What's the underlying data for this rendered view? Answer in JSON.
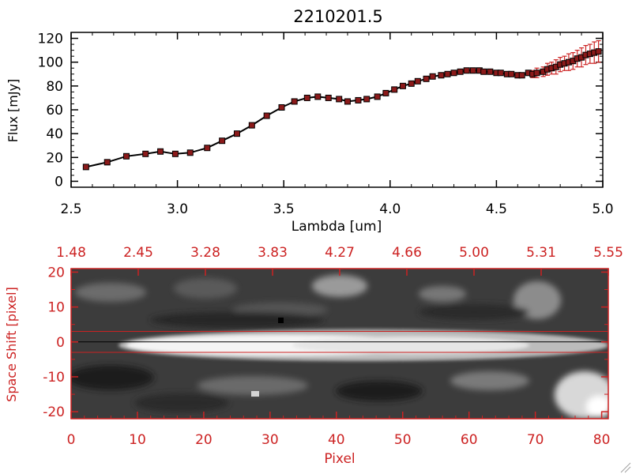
{
  "colors": {
    "accent": "#cc2222",
    "line": "#000000",
    "marker": "#8b1a1a",
    "background": "#ffffff"
  },
  "chart_data": [
    {
      "type": "line",
      "title": "2210201.5",
      "xlabel": "Lambda [um]",
      "ylabel": "Flux [mJy]",
      "xlim": [
        2.5,
        5.0
      ],
      "ylim": [
        -5,
        125
      ],
      "xticks": [
        "2.5",
        "3.0",
        "3.5",
        "4.0",
        "4.5",
        "5.0"
      ],
      "yticks": [
        "0",
        "20",
        "40",
        "60",
        "80",
        "100",
        "120"
      ],
      "series": [
        {
          "name": "spectrum",
          "x": [
            2.57,
            2.67,
            2.76,
            2.85,
            2.92,
            2.99,
            3.06,
            3.14,
            3.21,
            3.28,
            3.35,
            3.42,
            3.49,
            3.55,
            3.61,
            3.66,
            3.71,
            3.76,
            3.8,
            3.85,
            3.89,
            3.94,
            3.98,
            4.02,
            4.06,
            4.1,
            4.13,
            4.17,
            4.2,
            4.24,
            4.27,
            4.3,
            4.33,
            4.36,
            4.39,
            4.42,
            4.44,
            4.47,
            4.5,
            4.52,
            4.55,
            4.57,
            4.6,
            4.62,
            4.65,
            4.67,
            4.69,
            4.72,
            4.74,
            4.76,
            4.78,
            4.8,
            4.82,
            4.84,
            4.86,
            4.88,
            4.9,
            4.92,
            4.94,
            4.96,
            4.98
          ],
          "y": [
            12,
            16,
            21,
            23,
            25,
            23,
            24,
            28,
            34,
            40,
            47,
            55,
            62,
            67,
            70,
            71,
            70,
            69,
            67,
            68,
            69,
            71,
            74,
            77,
            80,
            82,
            84,
            86,
            88,
            89,
            90,
            91,
            92,
            93,
            93,
            93,
            92,
            92,
            91,
            91,
            90,
            90,
            89,
            89,
            91,
            90,
            91,
            92,
            94,
            95,
            96,
            98,
            99,
            100,
            101,
            103,
            104,
            106,
            107,
            108,
            109
          ],
          "yerr": [
            2,
            2,
            2,
            2,
            1.5,
            1.5,
            1.5,
            1.5,
            1.5,
            1.5,
            1.5,
            1.5,
            1.5,
            1.5,
            1.5,
            1.5,
            1.5,
            1.5,
            1.5,
            1.5,
            1.5,
            1.5,
            1.5,
            1.5,
            1.5,
            1.5,
            1.5,
            1.5,
            1.5,
            1.5,
            1.5,
            1.5,
            1.5,
            1.5,
            1.5,
            1.5,
            1.5,
            1.5,
            1.5,
            1.5,
            1.5,
            1.5,
            2,
            2,
            2,
            3,
            4,
            4,
            5,
            5,
            6,
            6,
            6,
            7,
            7,
            7,
            8,
            8,
            8,
            9,
            9
          ]
        }
      ]
    },
    {
      "type": "heatmap",
      "xlabel": "Pixel",
      "ylabel": "Space Shift [pixel]",
      "xlim": [
        0,
        81
      ],
      "ylim": [
        -22,
        21
      ],
      "xticks": [
        "0",
        "10",
        "20",
        "30",
        "40",
        "50",
        "60",
        "70",
        "80"
      ],
      "yticks": [
        "-20",
        "-10",
        "0",
        "10",
        "20"
      ],
      "top_axis_ticks": [
        "1.48",
        "2.45",
        "3.28",
        "3.83",
        "4.27",
        "4.66",
        "5.00",
        "5.31",
        "5.55"
      ],
      "extraction_aperture": [
        -3,
        3
      ],
      "trace_center": 0
    }
  ]
}
